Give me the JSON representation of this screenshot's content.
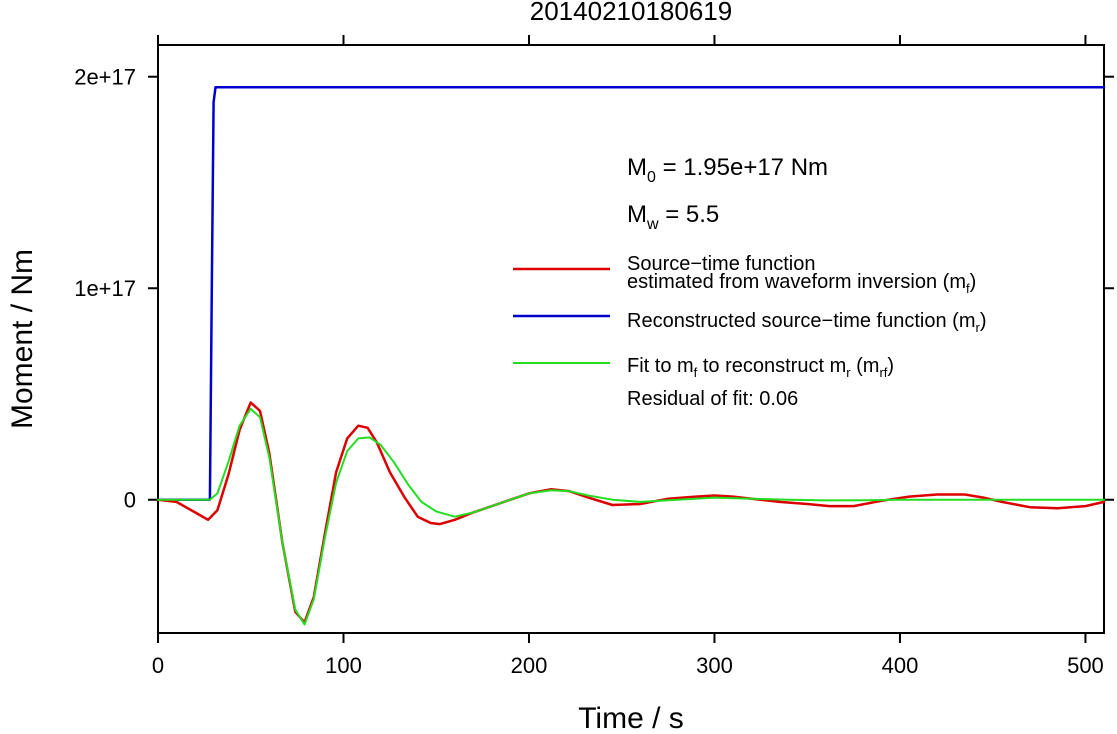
{
  "chart_data": {
    "type": "line",
    "title": "20140210180619",
    "xlabel": "Time / s",
    "ylabel": "Moment / Nm",
    "xlim": [
      0,
      510
    ],
    "ylim": [
      -6.3e+16,
      2.15e+17
    ],
    "x_ticks": [
      0,
      100,
      200,
      300,
      400,
      500
    ],
    "x_tick_labels": [
      "0",
      "100",
      "200",
      "300",
      "400",
      "500"
    ],
    "y_ticks": [
      0,
      1e+17,
      2e+17
    ],
    "y_tick_labels": [
      "0",
      "1e+17",
      "2e+17"
    ],
    "grid": false,
    "legend_position": "right",
    "annotations": {
      "m0_label": "M",
      "m0_sub": "0",
      "m0_value": " = 1.95e+17 Nm",
      "mw_label": "M",
      "mw_sub": "w",
      "mw_value": " = 5.5",
      "residual": "Residual of fit: 0.06"
    },
    "legend": {
      "red_line1": "Source−time function",
      "red_line2": "estimated from waveform inversion (m",
      "red_sub": "f",
      "red_end": ")",
      "blue_text": "Reconstructed source−time function (m",
      "blue_sub": "r",
      "blue_end": ")",
      "green_a": "Fit to m",
      "green_sub1": "f",
      "green_b": " to reconstruct m",
      "green_sub2": "r",
      "green_c": " (m",
      "green_sub3": "rf",
      "green_end": ")"
    },
    "series": [
      {
        "name": "Source−time function estimated from waveform inversion (mf)",
        "color": "#dd0000",
        "x": [
          0,
          10,
          20,
          27,
          32,
          38,
          44,
          50,
          55,
          60,
          67,
          74,
          79,
          84,
          90,
          96,
          102,
          108,
          113,
          118,
          125,
          133,
          140,
          147,
          152,
          160,
          170,
          180,
          190,
          200,
          212,
          222,
          232,
          245,
          260,
          275,
          290,
          300,
          310,
          320,
          335,
          350,
          362,
          375,
          390,
          405,
          420,
          435,
          445,
          455,
          470,
          485,
          500,
          510
        ],
        "y": [
          0,
          -1000000000000000.0,
          -6000000000000000.0,
          -9500000000000000.0,
          -5000000000000000.0,
          1.2e+16,
          3.3e+16,
          4.6e+16,
          4.2e+16,
          2.2e+16,
          -2e+16,
          -5.3e+16,
          -5.8e+16,
          -4.6e+16,
          -1.6e+16,
          1.3e+16,
          2.9e+16,
          3.5e+16,
          3.4e+16,
          2.7e+16,
          1.3e+16,
          1000000000000000.0,
          -8000000000000000.0,
          -1.1e+16,
          -1.15e+16,
          -9500000000000000.0,
          -6000000000000000.0,
          -3000000000000000.0,
          0,
          3000000000000000.0,
          5000000000000000.0,
          4000000000000000.0,
          1000000000000000.0,
          -2500000000000000.0,
          -2000000000000000.0,
          500000000000000.0,
          1500000000000000.0,
          2000000000000000.0,
          1500000000000000.0,
          500000000000000.0,
          -1000000000000000.0,
          -2000000000000000.0,
          -3000000000000000.0,
          -3000000000000000.0,
          -500000000000000.0,
          1500000000000000.0,
          2500000000000000.0,
          2500000000000000.0,
          1000000000000000.0,
          -1000000000000000.0,
          -3500000000000000.0,
          -4000000000000000.0,
          -3000000000000000.0,
          -1000000000000000.0
        ]
      },
      {
        "name": "Reconstructed source−time function (mr)",
        "color": "#0000cc",
        "x": [
          0,
          28,
          29,
          30,
          31,
          510
        ],
        "y": [
          0,
          0,
          1e+17,
          1.88e+17,
          1.95e+17,
          1.95e+17
        ]
      },
      {
        "name": "Fit to mf to reconstruct mr (mrf)",
        "color": "#22dd22",
        "x": [
          0,
          28,
          32,
          38,
          44,
          50,
          55,
          60,
          67,
          74,
          79,
          84,
          90,
          96,
          102,
          108,
          114,
          120,
          127,
          135,
          142,
          150,
          160,
          170,
          180,
          190,
          200,
          212,
          222,
          232,
          245,
          260,
          280,
          300,
          320,
          340,
          360,
          380,
          400,
          420,
          440,
          460,
          480,
          500,
          510
        ],
        "y": [
          0,
          0,
          3000000000000000.0,
          1.8e+16,
          3.5e+16,
          4.3e+16,
          3.9e+16,
          2e+16,
          -2e+16,
          -5.2e+16,
          -5.9e+16,
          -4.7e+16,
          -1.8e+16,
          8000000000000000.0,
          2.3e+16,
          2.9e+16,
          2.95e+16,
          2.6e+16,
          1.8e+16,
          7000000000000000.0,
          -1000000000000000.0,
          -5500000000000000.0,
          -8000000000000000.0,
          -6000000000000000.0,
          -3000000000000000.0,
          0,
          3000000000000000.0,
          4500000000000000.0,
          4000000000000000.0,
          2000000000000000.0,
          0,
          -1000000000000000.0,
          0,
          1000000000000000.0,
          500000000000000.0,
          0,
          -300000000000000.0,
          -200000000000000.0,
          0,
          0,
          0,
          0,
          0,
          0,
          0
        ]
      }
    ]
  }
}
